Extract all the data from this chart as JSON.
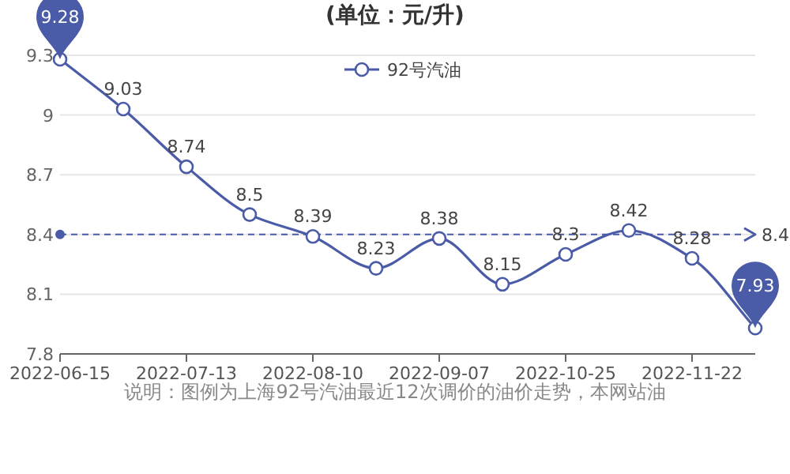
{
  "chart_data": {
    "type": "line",
    "title": "(单位：元/升)",
    "categories": [
      "2022-06-15",
      null,
      "2022-07-13",
      null,
      "2022-08-10",
      null,
      "2022-09-07",
      null,
      "2022-10-25",
      null,
      "2022-11-22",
      null
    ],
    "series": [
      {
        "name": "92号汽油",
        "color": "#4a5ba8",
        "values": [
          9.28,
          9.03,
          8.74,
          8.5,
          8.39,
          8.23,
          8.38,
          8.15,
          8.3,
          8.42,
          8.28,
          7.93
        ],
        "value_labels": [
          null,
          "9.03",
          "8.74",
          "8.5",
          "8.39",
          "8.23",
          "8.38",
          "8.15",
          "8.3",
          "8.42",
          "8.28",
          null
        ]
      }
    ],
    "annotations": [
      {
        "text": "9.28",
        "x": "2022-06-15",
        "y": 9.28
      },
      {
        "text": "7.93",
        "y": 7.93
      },
      "说明：图例为上海92号汽油最近12次调价的油价走势，本网站油"
    ],
    "ref_lines": [
      {
        "axis": "y",
        "value": 8.4,
        "label": "8.4",
        "color": "#4a5ba8",
        "line_style": "dashed"
      }
    ],
    "ylim": [
      7.8,
      9.3
    ],
    "yticks": [
      7.8,
      8.1,
      8.4,
      8.7,
      9,
      9.3
    ],
    "grid": "y",
    "legend": "top",
    "marker": "circle",
    "line_style": "solid"
  }
}
